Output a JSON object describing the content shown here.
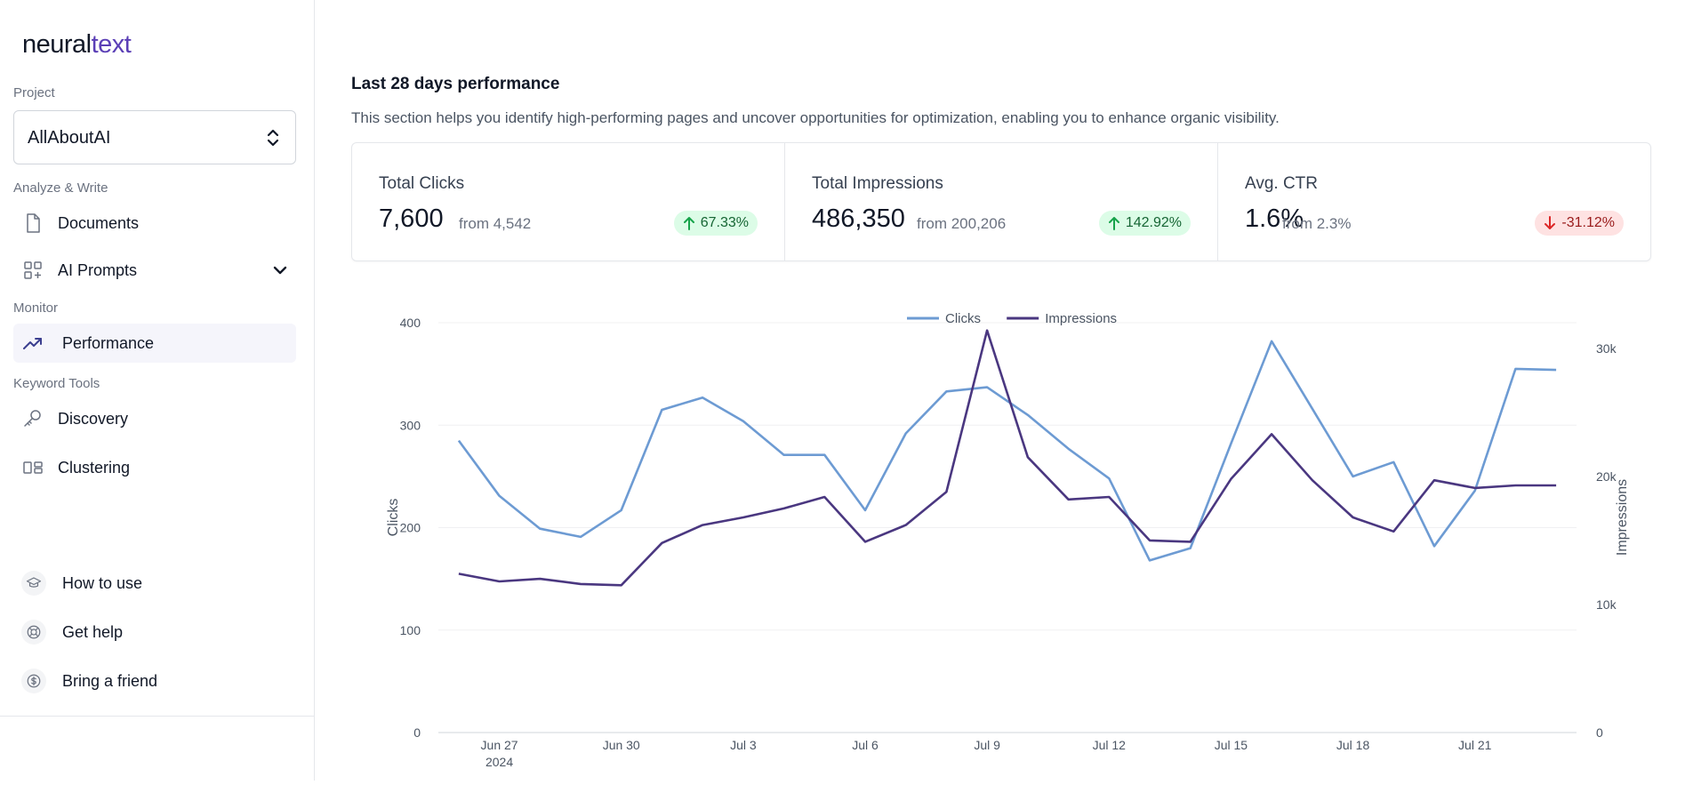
{
  "logo": {
    "part1": "neural",
    "part2": "text"
  },
  "sidebar": {
    "project_label": "Project",
    "project_value": "AllAboutAI",
    "analyze_label": "Analyze & Write",
    "monitor_label": "Monitor",
    "keyword_label": "Keyword Tools",
    "items": [
      {
        "label": "Documents",
        "icon": "document-icon"
      },
      {
        "label": "AI Prompts",
        "icon": "grid-icon"
      },
      {
        "label": "Performance",
        "icon": "trending-up-icon",
        "active": true
      },
      {
        "label": "Discovery",
        "icon": "key-icon"
      },
      {
        "label": "Clustering",
        "icon": "cluster-icon"
      }
    ],
    "bottom": [
      {
        "label": "How to use",
        "icon": "graduation-cap-icon"
      },
      {
        "label": "Get help",
        "icon": "lifebuoy-icon"
      },
      {
        "label": "Bring a friend",
        "icon": "dollar-icon"
      }
    ]
  },
  "main": {
    "title": "Last 28 days performance",
    "description": "This section helps you identify high-performing pages and uncover opportunities for optimization, enabling you to enhance organic visibility."
  },
  "stats": [
    {
      "label": "Total Clicks",
      "value": "7,600",
      "from": "from 4,542",
      "change": "67.33%",
      "direction": "up"
    },
    {
      "label": "Total Impressions",
      "value": "486,350",
      "from": "from 200,206",
      "change": "142.92%",
      "direction": "up"
    },
    {
      "label": "Avg. CTR",
      "value": "1.6%",
      "from": "from 2.3%",
      "change": "-31.12%",
      "direction": "down"
    }
  ],
  "colors": {
    "clicks": "#6d9bd3",
    "impressions": "#4a3780",
    "up_badge": "#dcfce7",
    "down_badge": "#fee2e2"
  },
  "chart_data": {
    "type": "line",
    "x": [
      "Jun 26",
      "Jun 27",
      "Jun 28",
      "Jun 29",
      "Jun 30",
      "Jul 1",
      "Jul 2",
      "Jul 3",
      "Jul 4",
      "Jul 5",
      "Jul 6",
      "Jul 7",
      "Jul 8",
      "Jul 9",
      "Jul 10",
      "Jul 11",
      "Jul 12",
      "Jul 13",
      "Jul 14",
      "Jul 15",
      "Jul 16",
      "Jul 17",
      "Jul 18",
      "Jul 19",
      "Jul 20",
      "Jul 21",
      "Jul 22",
      "Jul 23"
    ],
    "x_tick_labels": [
      "Jun 27",
      "Jun 30",
      "Jul 3",
      "Jul 6",
      "Jul 9",
      "Jul 12",
      "Jul 15",
      "Jul 18",
      "Jul 21"
    ],
    "x_year_label": "2024",
    "series": [
      {
        "name": "Clicks",
        "axis": "left",
        "values": [
          285,
          231,
          199,
          191,
          217,
          315,
          327,
          304,
          271,
          271,
          217,
          292,
          333,
          337,
          310,
          277,
          248,
          168,
          180,
          282,
          382,
          316,
          250,
          264,
          182,
          236,
          355,
          354
        ]
      },
      {
        "name": "Impressions",
        "axis": "right",
        "values": [
          12400,
          11800,
          12000,
          11600,
          11500,
          14800,
          16200,
          16800,
          17500,
          18400,
          14900,
          16200,
          18800,
          31400,
          21500,
          18200,
          18400,
          15000,
          14900,
          19800,
          23300,
          19700,
          16800,
          15700,
          19700,
          19100,
          19300,
          19300
        ]
      }
    ],
    "ylabel": "Clicks",
    "ylabel_right": "Impressions",
    "ylim": [
      0,
      420
    ],
    "ylim_right": [
      0,
      33600
    ],
    "yticks": [
      "0",
      "100",
      "200",
      "300",
      "400"
    ],
    "yticks_right": [
      "0",
      "10k",
      "20k",
      "30k"
    ],
    "legend_position": "top-center",
    "grid": true
  }
}
